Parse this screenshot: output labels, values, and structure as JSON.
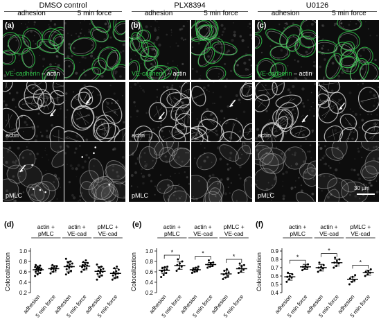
{
  "header": {
    "groups": [
      {
        "title": "DMSO control",
        "conditions": [
          "adhesion",
          "5 min force"
        ]
      },
      {
        "title": "PLX8394",
        "conditions": [
          "adhesion",
          "5 min force"
        ]
      },
      {
        "title": "U0126",
        "conditions": [
          "adhesion",
          "5 min force"
        ]
      }
    ]
  },
  "micrographs": {
    "panel_letters": [
      "(a)",
      "(b)",
      "(c)"
    ],
    "merge_label_green": "VE-cadherin",
    "merge_label_rest": " – actin",
    "row_labels": [
      "actin",
      "pMLC"
    ],
    "scalebar": "30 µm",
    "colors": {
      "green": "#31c24a",
      "white": "#e8e8e8"
    }
  },
  "chart_data": [
    {
      "type": "scatter",
      "panel": "(d)",
      "ylabel": "Colocalization",
      "ylim": [
        0.2,
        1.0
      ],
      "yticks": [
        "0.2",
        "0.4",
        "0.6",
        "0.8",
        "1.0"
      ],
      "group_headers": [
        [
          "actin +",
          "pMLC"
        ],
        [
          "actin +",
          "VE-cad"
        ],
        [
          "pMLC +",
          "VE-cad"
        ]
      ],
      "categories": [
        "adhesion",
        "5 min force",
        "adhesion",
        "5 min force",
        "adhesion",
        "5 min force"
      ],
      "means": [
        0.64,
        0.66,
        0.7,
        0.71,
        0.61,
        0.57
      ],
      "sd": [
        0.07,
        0.06,
        0.1,
        0.07,
        0.09,
        0.09
      ],
      "points": [
        [
          0.52,
          0.55,
          0.58,
          0.6,
          0.62,
          0.63,
          0.64,
          0.65,
          0.66,
          0.67,
          0.68,
          0.69,
          0.7,
          0.72,
          0.73
        ],
        [
          0.57,
          0.6,
          0.63,
          0.65,
          0.66,
          0.67,
          0.68,
          0.7,
          0.71,
          0.73
        ],
        [
          0.55,
          0.58,
          0.62,
          0.65,
          0.68,
          0.7,
          0.72,
          0.74,
          0.76,
          0.78,
          0.8,
          0.85
        ],
        [
          0.6,
          0.64,
          0.67,
          0.69,
          0.71,
          0.72,
          0.73,
          0.75,
          0.77,
          0.79,
          0.82
        ],
        [
          0.45,
          0.5,
          0.53,
          0.56,
          0.58,
          0.6,
          0.62,
          0.64,
          0.66,
          0.68,
          0.7,
          0.74
        ],
        [
          0.45,
          0.48,
          0.5,
          0.53,
          0.55,
          0.57,
          0.59,
          0.61,
          0.64,
          0.67,
          0.7
        ]
      ],
      "significance": []
    },
    {
      "type": "scatter",
      "panel": "(e)",
      "ylabel": "Colocalization",
      "ylim": [
        0.2,
        1.0
      ],
      "yticks": [
        "0.2",
        "0.4",
        "0.6",
        "0.8",
        "1.0"
      ],
      "group_headers": [
        [
          "actin +",
          "pMLC"
        ],
        [
          "actin +",
          "VE-cad"
        ],
        [
          "pMLC +",
          "VE-cad"
        ]
      ],
      "categories": [
        "adhesion",
        "5 min force",
        "adhesion",
        "5 min force",
        "adhesion",
        "5 min force"
      ],
      "means": [
        0.63,
        0.72,
        0.64,
        0.74,
        0.56,
        0.66
      ],
      "sd": [
        0.06,
        0.07,
        0.04,
        0.04,
        0.07,
        0.07
      ],
      "points": [
        [
          0.5,
          0.54,
          0.58,
          0.61,
          0.63,
          0.65,
          0.67,
          0.69,
          0.7
        ],
        [
          0.62,
          0.66,
          0.7,
          0.73,
          0.76,
          0.8,
          0.84
        ],
        [
          0.58,
          0.6,
          0.62,
          0.63,
          0.64,
          0.65,
          0.66,
          0.68,
          0.7
        ],
        [
          0.68,
          0.7,
          0.72,
          0.74,
          0.76,
          0.78,
          0.82
        ],
        [
          0.46,
          0.49,
          0.52,
          0.55,
          0.57,
          0.59,
          0.62,
          0.65
        ],
        [
          0.58,
          0.61,
          0.64,
          0.67,
          0.7,
          0.73,
          0.76
        ]
      ],
      "significance": [
        [
          0,
          1,
          "*"
        ],
        [
          2,
          3,
          "*"
        ],
        [
          4,
          5,
          "*"
        ]
      ]
    },
    {
      "type": "scatter",
      "panel": "(f)",
      "ylabel": "Colocalization",
      "ylim": [
        0.4,
        0.9
      ],
      "yticks": [
        "0.4",
        "0.5",
        "0.6",
        "0.7",
        "0.8",
        "0.9"
      ],
      "group_headers": [
        [
          "actin +",
          "pMLC"
        ],
        [
          "actin +",
          "VE-cad"
        ],
        [
          "pMLC +",
          "VE-cad"
        ]
      ],
      "categories": [
        "adhesion",
        "5 min force",
        "adhesion",
        "5 min force",
        "adhesion",
        "5 min force"
      ],
      "means": [
        0.59,
        0.71,
        0.7,
        0.76,
        0.56,
        0.64
      ],
      "sd": [
        0.04,
        0.03,
        0.04,
        0.04,
        0.03,
        0.03
      ],
      "points": [
        [
          0.53,
          0.56,
          0.58,
          0.59,
          0.6,
          0.62,
          0.64
        ],
        [
          0.67,
          0.69,
          0.7,
          0.71,
          0.72,
          0.74
        ],
        [
          0.65,
          0.67,
          0.69,
          0.7,
          0.71,
          0.73,
          0.76
        ],
        [
          0.7,
          0.72,
          0.75,
          0.76,
          0.78,
          0.8,
          0.82
        ],
        [
          0.5,
          0.53,
          0.55,
          0.57,
          0.59,
          0.61
        ],
        [
          0.6,
          0.62,
          0.64,
          0.65,
          0.66,
          0.68
        ]
      ],
      "significance": [
        [
          0,
          1,
          "*"
        ],
        [
          2,
          3,
          "*"
        ],
        [
          4,
          5,
          "*"
        ]
      ]
    }
  ]
}
